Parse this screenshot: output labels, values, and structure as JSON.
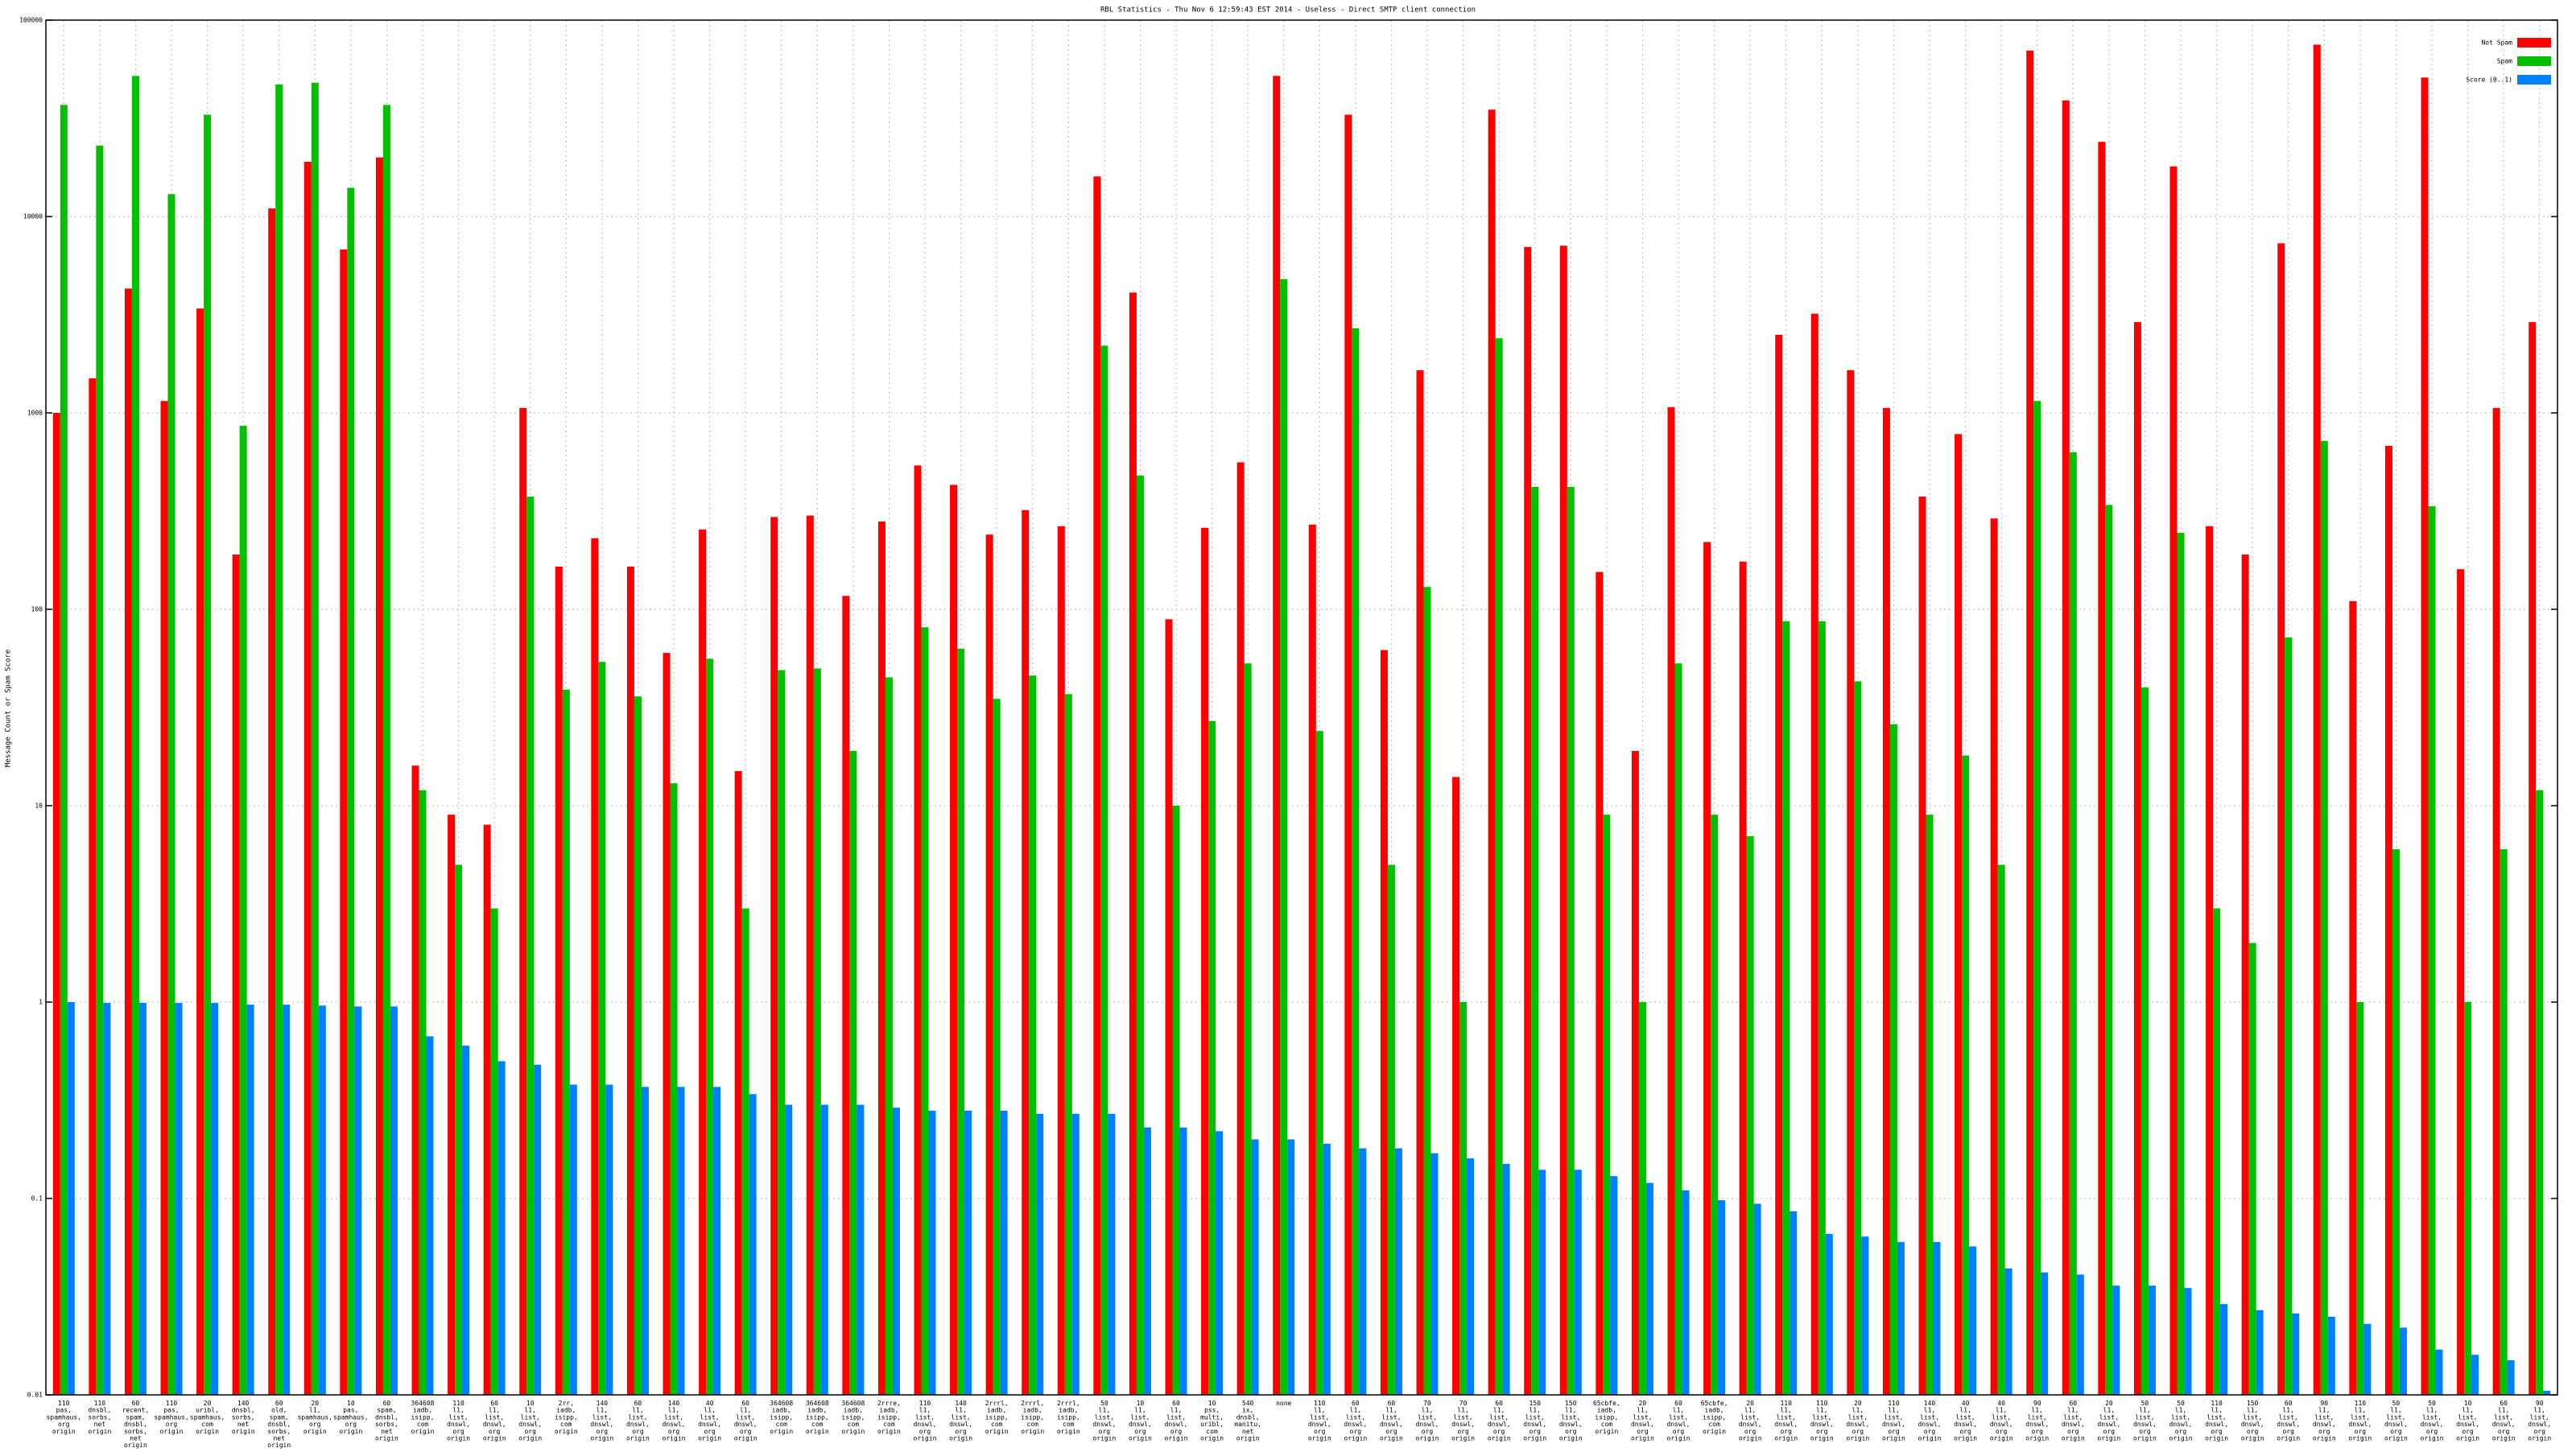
{
  "chart_data": {
    "type": "bar",
    "title": "RBL Statistics - Thu Nov  6 12:59:43 EST 2014 - Useless - Direct SMTP client connection",
    "y_label": "Message Count or Spam Score",
    "log_scale": true,
    "grid": true,
    "legend": "top-right",
    "ylim": [
      0.01,
      100000
    ],
    "yticks": [
      0.01,
      0.1,
      1,
      10,
      100,
      1000,
      10000,
      100000
    ],
    "categories": [
      [
        "110",
        "pas,",
        "spamhaus,",
        "org",
        "origin"
      ],
      [
        "110",
        "dnsbl,",
        "sorbs,",
        "net",
        "origin"
      ],
      [
        "60",
        "recent,",
        "spam,",
        "dnsbl,",
        "sorbs,",
        "net",
        "origin"
      ],
      [
        "110",
        "pas,",
        "spamhaus,",
        "org",
        "origin"
      ],
      [
        "20",
        "uribl,",
        "spamhaus,",
        "com",
        "origin"
      ],
      [
        "140",
        "dnsbl,",
        "sorbs,",
        "net",
        "origin"
      ],
      [
        "60",
        "old,",
        "spam,",
        "dnsbl,",
        "sorbs,",
        "net",
        "origin"
      ],
      [
        "20",
        "l1,",
        "spamhaus,",
        "org",
        "origin"
      ],
      [
        "10",
        "pas,",
        "spamhaus,",
        "org",
        "origin"
      ],
      [
        "60",
        "spam,",
        "dnsbl,",
        "sorbs,",
        "net",
        "origin"
      ],
      [
        "364608",
        "iadb,",
        "isipp,",
        "com",
        "origin"
      ],
      [
        "110",
        "l1,",
        "list,",
        "dnswl,",
        "org",
        "origin"
      ],
      [
        "60",
        "l1,",
        "list,",
        "dnswl,",
        "org",
        "origin"
      ],
      [
        "10",
        "l1,",
        "list,",
        "dnswl,",
        "org",
        "origin"
      ],
      [
        "2rr,",
        "iadb,",
        "isipp,",
        "com",
        "origin"
      ],
      [
        "140",
        "l1,",
        "list,",
        "dnswl,",
        "org",
        "origin"
      ],
      [
        "60",
        "l1,",
        "list,",
        "dnswl,",
        "org",
        "origin"
      ],
      [
        "140",
        "l1,",
        "list,",
        "dnswl,",
        "org",
        "origin"
      ],
      [
        "40",
        "l1,",
        "list,",
        "dnswl,",
        "org",
        "origin"
      ],
      [
        "60",
        "l1,",
        "list,",
        "dnswl,",
        "org",
        "origin"
      ],
      [
        "364608",
        "iadb,",
        "isipp,",
        "com",
        "origin"
      ],
      [
        "364608",
        "iadb,",
        "isipp,",
        "com",
        "origin"
      ],
      [
        "364608",
        "iadb,",
        "isipp,",
        "com",
        "origin"
      ],
      [
        "2rrre,",
        "iadb,",
        "isipp,",
        "com",
        "origin"
      ],
      [
        "110",
        "l1,",
        "list,",
        "dnswl,",
        "org",
        "origin"
      ],
      [
        "140",
        "l1,",
        "list,",
        "dnswl,",
        "org",
        "origin"
      ],
      [
        "2rrrl,",
        "iadb,",
        "isipp,",
        "com",
        "origin"
      ],
      [
        "2rrrl,",
        "iadb,",
        "isipp,",
        "com",
        "origin"
      ],
      [
        "2rrrl,",
        "iadb,",
        "isipp,",
        "com",
        "origin"
      ],
      [
        "50",
        "l1,",
        "list,",
        "dnswl,",
        "org",
        "origin"
      ],
      [
        "10",
        "l1,",
        "list,",
        "dnswl,",
        "org",
        "origin"
      ],
      [
        "60",
        "l1,",
        "list,",
        "dnswl,",
        "org",
        "origin"
      ],
      [
        "10",
        "pss,",
        "multi,",
        "uribl,",
        "com",
        "origin"
      ],
      [
        "540",
        "ix,",
        "dnsbl,",
        "manitu,",
        "net",
        "origin"
      ],
      [
        "none"
      ],
      [
        "110",
        "l1,",
        "list,",
        "dnswl,",
        "org",
        "origin"
      ],
      [
        "60",
        "l1,",
        "list,",
        "dnswl,",
        "org",
        "origin"
      ],
      [
        "60",
        "l1,",
        "list,",
        "dnswl,",
        "org",
        "origin"
      ],
      [
        "70",
        "l1,",
        "list,",
        "dnswl,",
        "org",
        "origin"
      ],
      [
        "70",
        "l1,",
        "list,",
        "dnswl,",
        "org",
        "origin"
      ],
      [
        "60",
        "l1,",
        "list,",
        "dnswl,",
        "org",
        "origin"
      ],
      [
        "150",
        "l1,",
        "list,",
        "dnswl,",
        "org",
        "origin"
      ],
      [
        "150",
        "l1,",
        "list,",
        "dnswl,",
        "org",
        "origin"
      ],
      [
        "65cbfe,",
        "iadb,",
        "isipp,",
        "com",
        "origin"
      ],
      [
        "20",
        "l1,",
        "list,",
        "dnswl,",
        "org",
        "origin"
      ],
      [
        "60",
        "l1,",
        "list,",
        "dnswl,",
        "org",
        "origin"
      ],
      [
        "65cbfe,",
        "iadb,",
        "isipp,",
        "com",
        "origin"
      ],
      [
        "20",
        "l1,",
        "list,",
        "dnswl,",
        "org",
        "origin"
      ],
      [
        "110",
        "l1,",
        "list,",
        "dnswl,",
        "org",
        "origin"
      ],
      [
        "110",
        "l1,",
        "list,",
        "dnswl,",
        "org",
        "origin"
      ],
      [
        "20",
        "l1,",
        "list,",
        "dnswl,",
        "org",
        "origin"
      ],
      [
        "110",
        "l1,",
        "list,",
        "dnswl,",
        "org",
        "origin"
      ],
      [
        "140",
        "l1,",
        "list,",
        "dnswl,",
        "org",
        "origin"
      ],
      [
        "40",
        "l1,",
        "list,",
        "dnswl,",
        "org",
        "origin"
      ],
      [
        "40",
        "l1,",
        "list,",
        "dnswl,",
        "org",
        "origin"
      ],
      [
        "90",
        "l1,",
        "list,",
        "dnswl,",
        "org",
        "origin"
      ],
      [
        "60",
        "l1,",
        "list,",
        "dnswl,",
        "org",
        "origin"
      ],
      [
        "20",
        "l1,",
        "list,",
        "dnswl,",
        "org",
        "origin"
      ],
      [
        "50",
        "l1,",
        "list,",
        "dnswl,",
        "org",
        "origin"
      ],
      [
        "50",
        "l1,",
        "list,",
        "dnswl,",
        "org",
        "origin"
      ],
      [
        "110",
        "l1,",
        "list,",
        "dnswl,",
        "org",
        "origin"
      ],
      [
        "150",
        "l1,",
        "list,",
        "dnswl,",
        "org",
        "origin"
      ],
      [
        "60",
        "l1,",
        "list,",
        "dnswl,",
        "org",
        "origin"
      ],
      [
        "90",
        "l1,",
        "list,",
        "dnswl,",
        "org",
        "origin"
      ],
      [
        "110",
        "l1,",
        "list,",
        "dnswl,",
        "org",
        "origin"
      ],
      [
        "50",
        "l1,",
        "list,",
        "dnswl,",
        "org",
        "origin"
      ],
      [
        "50",
        "l1,",
        "list,",
        "dnswl,",
        "org",
        "origin"
      ],
      [
        "10",
        "l1,",
        "list,",
        "dnswl,",
        "org",
        "origin"
      ],
      [
        "60",
        "l1,",
        "list,",
        "dnswl,",
        "org",
        "origin"
      ],
      [
        "90",
        "l1,",
        "list,",
        "dnswl,",
        "org",
        "origin"
      ]
    ],
    "series": [
      {
        "name": "Not Spam",
        "color": "#ff0000",
        "values": [
          1000,
          1500,
          4300,
          1150,
          3400,
          190,
          11000,
          19000,
          6800,
          20000,
          16,
          9,
          8,
          1060,
          165,
          230,
          165,
          60,
          255,
          15,
          295,
          300,
          117,
          280,
          540,
          430,
          240,
          320,
          265,
          16000,
          4100,
          89,
          260,
          560,
          52000,
          270,
          33000,
          62,
          1650,
          14,
          35000,
          7000,
          7100,
          155,
          19,
          1070,
          220,
          175,
          2500,
          3200,
          1650,
          1060,
          375,
          780,
          290,
          70000,
          39000,
          24000,
          2900,
          18000,
          265,
          190,
          7300,
          75000,
          110,
          680,
          51000,
          160,
          1060,
          2900
        ]
      },
      {
        "name": "Spam",
        "color": "#00c000",
        "values": [
          37000,
          23000,
          52000,
          13000,
          33000,
          860,
          47000,
          48000,
          14000,
          37000,
          12,
          5,
          3,
          375,
          39,
          54,
          36,
          13,
          56,
          3,
          49,
          50,
          19,
          45,
          81,
          63,
          35,
          46,
          37,
          2200,
          480,
          10,
          27,
          53,
          4800,
          24,
          2700,
          5,
          130,
          1,
          2400,
          420,
          420,
          9,
          1,
          53,
          9,
          7,
          87,
          87,
          43,
          26,
          9,
          18,
          5,
          1150,
          630,
          340,
          40,
          245,
          3,
          2,
          72,
          720,
          1,
          6,
          335,
          1,
          6,
          12
        ]
      },
      {
        "name": "Score (0..1)",
        "color": "#0080ff",
        "values": [
          1.0,
          0.99,
          0.99,
          0.99,
          0.99,
          0.97,
          0.97,
          0.96,
          0.95,
          0.95,
          0.67,
          0.6,
          0.5,
          0.48,
          0.38,
          0.38,
          0.37,
          0.37,
          0.37,
          0.34,
          0.3,
          0.3,
          0.3,
          0.29,
          0.28,
          0.28,
          0.28,
          0.27,
          0.27,
          0.27,
          0.23,
          0.23,
          0.22,
          0.2,
          0.2,
          0.19,
          0.18,
          0.18,
          0.17,
          0.16,
          0.15,
          0.14,
          0.14,
          0.13,
          0.12,
          0.11,
          0.098,
          0.094,
          0.086,
          0.066,
          0.064,
          0.06,
          0.06,
          0.057,
          0.044,
          0.042,
          0.041,
          0.036,
          0.036,
          0.035,
          0.029,
          0.027,
          0.026,
          0.025,
          0.023,
          0.022,
          0.017,
          0.016,
          0.015,
          0.0105
        ]
      }
    ]
  }
}
